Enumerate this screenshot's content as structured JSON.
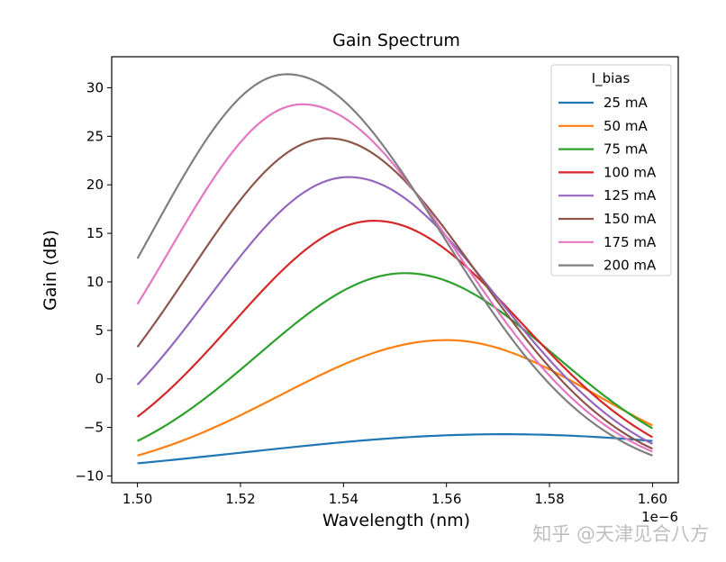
{
  "chart_data": {
    "type": "line",
    "title": "Gain Spectrum",
    "xlabel": "Wavelength (nm)",
    "ylabel": "Gain (dB)",
    "x_offset_text": "1e−6",
    "xlim": [
      1.495,
      1.605
    ],
    "ylim": [
      -10.7,
      33.2
    ],
    "xticks": [
      1.5,
      1.52,
      1.54,
      1.56,
      1.58,
      1.6
    ],
    "xtick_labels": [
      "1.50",
      "1.52",
      "1.54",
      "1.56",
      "1.58",
      "1.60"
    ],
    "yticks": [
      -10,
      -5,
      0,
      5,
      10,
      15,
      20,
      25,
      30
    ],
    "ytick_labels": [
      "−10",
      "−5",
      "0",
      "5",
      "10",
      "15",
      "20",
      "25",
      "30"
    ],
    "grid": false,
    "legend": {
      "title": "I_bias",
      "position": "top-right"
    },
    "model": {
      "description": "Each series is a Gaussian bump: gain(x) = offset + amplitude * exp(-((x - center)/width)^2 / 2), x in 1e-6 m",
      "x_start": 1.5,
      "x_end": 1.6,
      "samples": 121
    },
    "series": [
      {
        "name": "25 mA",
        "color": "#1f77b4",
        "peak_x": 1.571,
        "peak_y": -5.7,
        "start_y": -8.7,
        "end_y": -6.4
      },
      {
        "name": "50 mA",
        "color": "#ff7f0e",
        "peak_x": 1.56,
        "peak_y": 4.0,
        "start_y": -7.9,
        "end_y": -4.8
      },
      {
        "name": "75 mA",
        "color": "#2ca02c",
        "peak_x": 1.552,
        "peak_y": 10.9,
        "start_y": -6.4,
        "end_y": -5.1
      },
      {
        "name": "100 mA",
        "color": "#d62728",
        "peak_x": 1.546,
        "peak_y": 16.3,
        "start_y": -3.9,
        "end_y": -6.0
      },
      {
        "name": "125 mA",
        "color": "#9467bd",
        "peak_x": 1.541,
        "peak_y": 20.8,
        "start_y": -0.6,
        "end_y": -6.7
      },
      {
        "name": "150 mA",
        "color": "#8c564b",
        "peak_x": 1.537,
        "peak_y": 24.8,
        "start_y": 3.3,
        "end_y": -7.2
      },
      {
        "name": "175 mA",
        "color": "#e377c2",
        "peak_x": 1.532,
        "peak_y": 28.3,
        "start_y": 7.7,
        "end_y": -7.5
      },
      {
        "name": "200 mA",
        "color": "#7f7f7f",
        "peak_x": 1.529,
        "peak_y": 31.4,
        "start_y": 12.4,
        "end_y": -7.9
      }
    ]
  },
  "watermark": {
    "text": "知乎 @天津见合八方"
  }
}
